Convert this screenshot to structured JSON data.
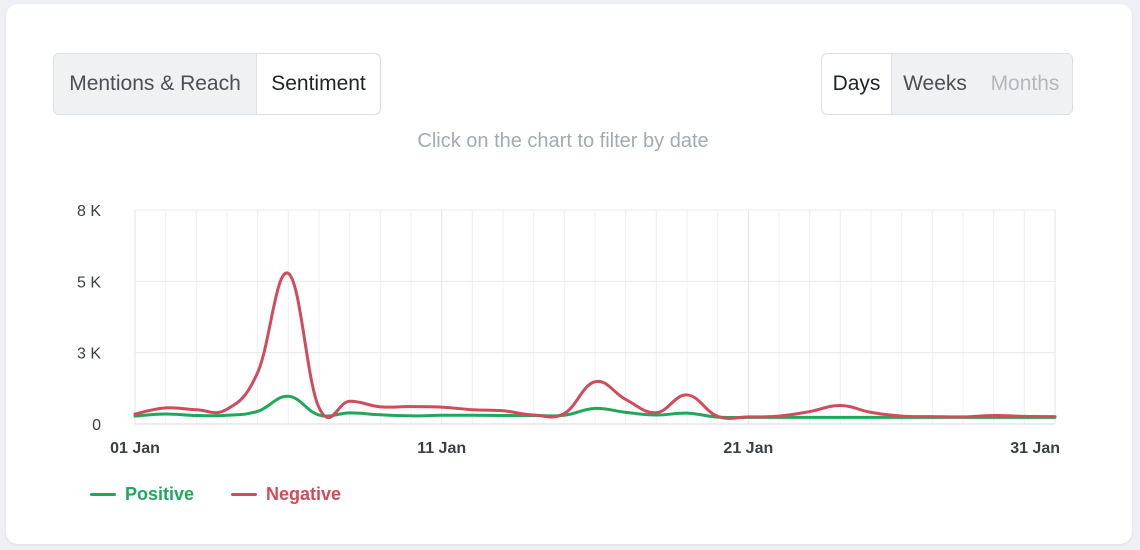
{
  "tabs_left": [
    {
      "label": "Mentions & Reach",
      "active": false
    },
    {
      "label": "Sentiment",
      "active": true
    }
  ],
  "tabs_right": [
    {
      "label": "Days",
      "active": true
    },
    {
      "label": "Weeks",
      "active": false
    },
    {
      "label": "Months",
      "active": false,
      "disabled": true
    }
  ],
  "hint": "Click on the chart to filter by date",
  "chart_data": {
    "type": "line",
    "title": "",
    "xlabel": "",
    "ylabel": "",
    "x": [
      "01 Jan",
      "02 Jan",
      "03 Jan",
      "04 Jan",
      "05 Jan",
      "06 Jan",
      "07 Jan",
      "08 Jan",
      "09 Jan",
      "10 Jan",
      "11 Jan",
      "12 Jan",
      "13 Jan",
      "14 Jan",
      "15 Jan",
      "16 Jan",
      "17 Jan",
      "18 Jan",
      "19 Jan",
      "20 Jan",
      "21 Jan",
      "22 Jan",
      "23 Jan",
      "24 Jan",
      "25 Jan",
      "26 Jan",
      "27 Jan",
      "28 Jan",
      "29 Jan",
      "30 Jan",
      "31 Jan"
    ],
    "x_tick_labels": [
      "01 Jan",
      "11 Jan",
      "21 Jan",
      "31 Jan"
    ],
    "y_ticks": [
      {
        "value": 0,
        "label": "0"
      },
      {
        "value": 2700,
        "label": "3 K"
      },
      {
        "value": 5400,
        "label": "5 K"
      },
      {
        "value": 8100,
        "label": "8 K"
      }
    ],
    "ylim": [
      0,
      8100
    ],
    "grid": true,
    "legend_position": "bottom-left",
    "series": [
      {
        "name": "Positive",
        "color": "#1fa85a",
        "values": [
          300,
          380,
          320,
          330,
          480,
          1050,
          340,
          420,
          350,
          310,
          330,
          330,
          320,
          320,
          330,
          590,
          440,
          340,
          410,
          260,
          250,
          250,
          250,
          250,
          250,
          250,
          250,
          250,
          250,
          250,
          250
        ]
      },
      {
        "name": "Negative",
        "color": "#d14b5c",
        "values": [
          380,
          610,
          540,
          560,
          1950,
          5700,
          620,
          860,
          650,
          660,
          640,
          540,
          500,
          340,
          400,
          1600,
          930,
          430,
          1100,
          290,
          270,
          300,
          470,
          700,
          440,
          300,
          280,
          270,
          320,
          290,
          280
        ]
      }
    ]
  }
}
